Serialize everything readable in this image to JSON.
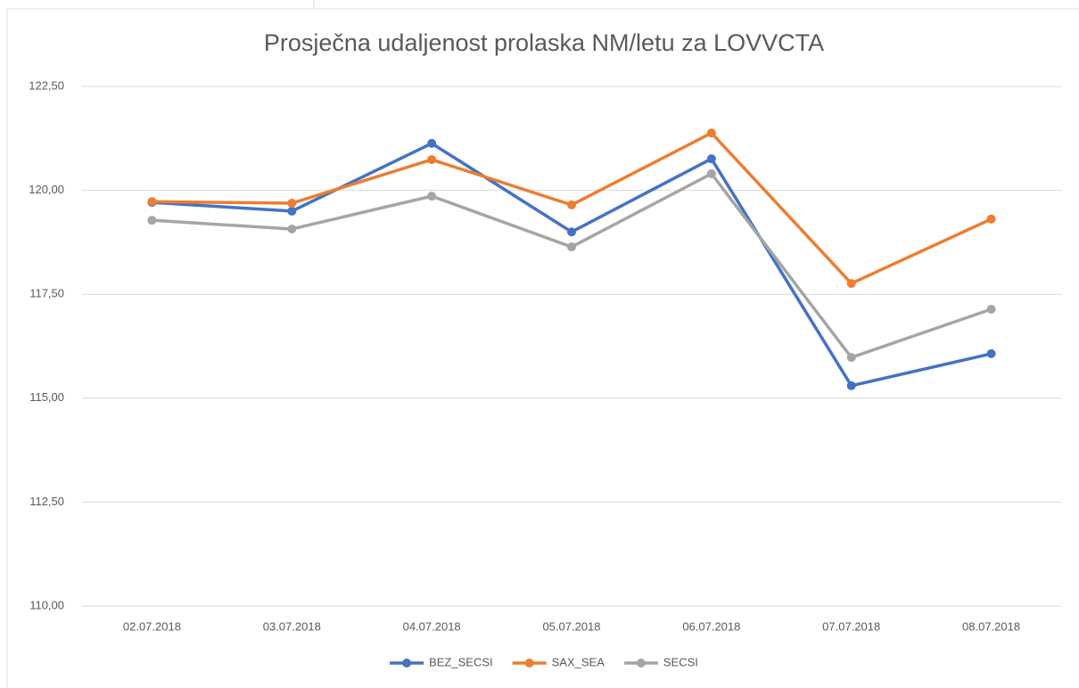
{
  "chart_data": {
    "type": "line",
    "title": "Prosječna udaljenost prolaska NM/letu za LOVVCTA",
    "categories": [
      "02.07.2018",
      "03.07.2018",
      "04.07.2018",
      "05.07.2018",
      "06.07.2018",
      "07.07.2018",
      "08.07.2018"
    ],
    "series": [
      {
        "name": "BEZ_SECSI",
        "color": "#4472c4",
        "values": [
          119.71,
          119.5,
          121.13,
          119.0,
          120.76,
          115.3,
          116.07
        ]
      },
      {
        "name": "SAX_SEA",
        "color": "#ed7d31",
        "values": [
          119.73,
          119.69,
          120.74,
          119.65,
          121.38,
          117.76,
          119.31
        ]
      },
      {
        "name": "SECSI",
        "color": "#a5a5a5",
        "values": [
          119.28,
          119.07,
          119.86,
          118.64,
          120.4,
          115.98,
          117.14
        ]
      }
    ],
    "ylim": [
      110,
      122.5
    ],
    "yticks": [
      {
        "value": 110,
        "label": "110,00"
      },
      {
        "value": 112.5,
        "label": "112,50"
      },
      {
        "value": 115,
        "label": "115,00"
      },
      {
        "value": 117.5,
        "label": "117,50"
      },
      {
        "value": 120,
        "label": "120,00"
      },
      {
        "value": 122.5,
        "label": "122,50"
      }
    ],
    "grid": true,
    "legend": "bottom"
  }
}
